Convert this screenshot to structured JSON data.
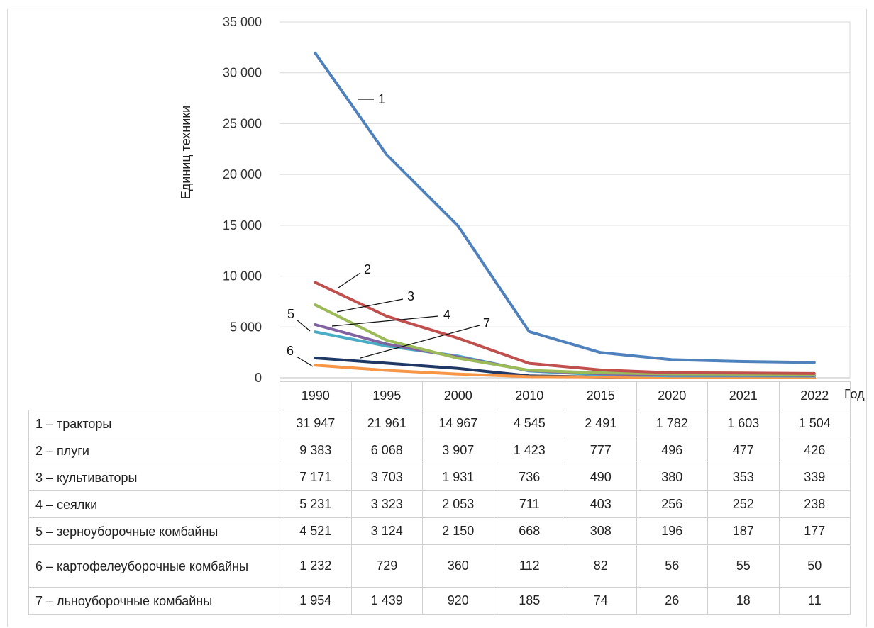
{
  "chart_data": {
    "type": "line",
    "ylabel": "Единиц техники",
    "xlabel": "Год",
    "ylim": [
      0,
      35000
    ],
    "yticks": [
      "0",
      "5 000",
      "10 000",
      "15 000",
      "20 000",
      "25 000",
      "30 000",
      "35 000"
    ],
    "categories": [
      "1990",
      "1995",
      "2000",
      "2010",
      "2015",
      "2020",
      "2021",
      "2022"
    ],
    "grid": true,
    "legend": "data table below chart",
    "series": [
      {
        "name": "1 – тракторы",
        "label": "1",
        "color": "#4f81bd",
        "values": [
          31947,
          21961,
          14967,
          4545,
          2491,
          1782,
          1603,
          1504
        ],
        "display": [
          "31 947",
          "21 961",
          "14 967",
          "4 545",
          "2 491",
          "1 782",
          "1 603",
          "1 504"
        ]
      },
      {
        "name": "2 – плуги",
        "label": "2",
        "color": "#c0504d",
        "values": [
          9383,
          6068,
          3907,
          1423,
          777,
          496,
          477,
          426
        ],
        "display": [
          "9 383",
          "6 068",
          "3 907",
          "1 423",
          "777",
          "496",
          "477",
          "426"
        ]
      },
      {
        "name": "3 – культиваторы",
        "label": "3",
        "color": "#9bbb59",
        "values": [
          7171,
          3703,
          1931,
          736,
          490,
          380,
          353,
          339
        ],
        "display": [
          "7 171",
          "3 703",
          "1 931",
          "736",
          "490",
          "380",
          "353",
          "339"
        ]
      },
      {
        "name": "4 – сеялки",
        "label": "4",
        "color": "#8064a2",
        "values": [
          5231,
          3323,
          2053,
          711,
          403,
          256,
          252,
          238
        ],
        "display": [
          "5 231",
          "3 323",
          "2 053",
          "711",
          "403",
          "256",
          "252",
          "238"
        ]
      },
      {
        "name": "5 – зерноуборочные комбайны",
        "label": "5",
        "color": "#4bacc6",
        "values": [
          4521,
          3124,
          2150,
          668,
          308,
          196,
          187,
          177
        ],
        "display": [
          "4 521",
          "3 124",
          "2 150",
          "668",
          "308",
          "196",
          "187",
          "177"
        ]
      },
      {
        "name": "6 – картофелеуборочные комбайны",
        "label": "6",
        "color": "#f79646",
        "values": [
          1232,
          729,
          360,
          112,
          82,
          56,
          55,
          50
        ],
        "display": [
          "1 232",
          "729",
          "360",
          "112",
          "82",
          "56",
          "55",
          "50"
        ]
      },
      {
        "name": "7 – льноуборочные комбайны",
        "label": "7",
        "color": "#1f3864",
        "values": [
          1954,
          1439,
          920,
          185,
          74,
          26,
          18,
          11
        ],
        "display": [
          "1 954",
          "1 439",
          "920",
          "185",
          "74",
          "26",
          "18",
          "11"
        ]
      }
    ]
  }
}
